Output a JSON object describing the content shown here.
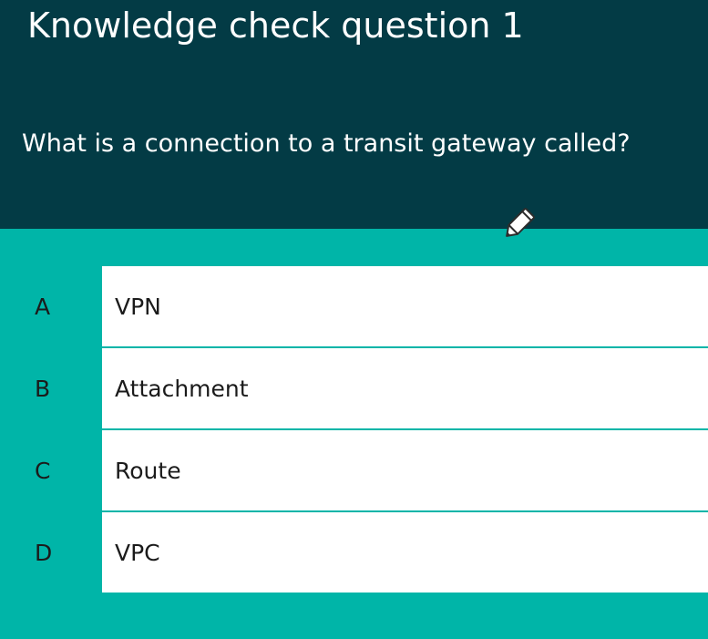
{
  "quiz": {
    "title": "Knowledge check question 1",
    "question": "What is a connection to a transit gateway called?",
    "options": [
      {
        "letter": "A",
        "text": "VPN"
      },
      {
        "letter": "B",
        "text": "Attachment"
      },
      {
        "letter": "C",
        "text": "Route"
      },
      {
        "letter": "D",
        "text": "VPC"
      }
    ]
  },
  "icons": {
    "pencil": "pencil-icon"
  },
  "colors": {
    "header_background": "#033b45",
    "body_background": "#00b5a8",
    "option_background": "#ffffff",
    "text_light": "#ffffff",
    "text_dark": "#1b1b1b"
  }
}
